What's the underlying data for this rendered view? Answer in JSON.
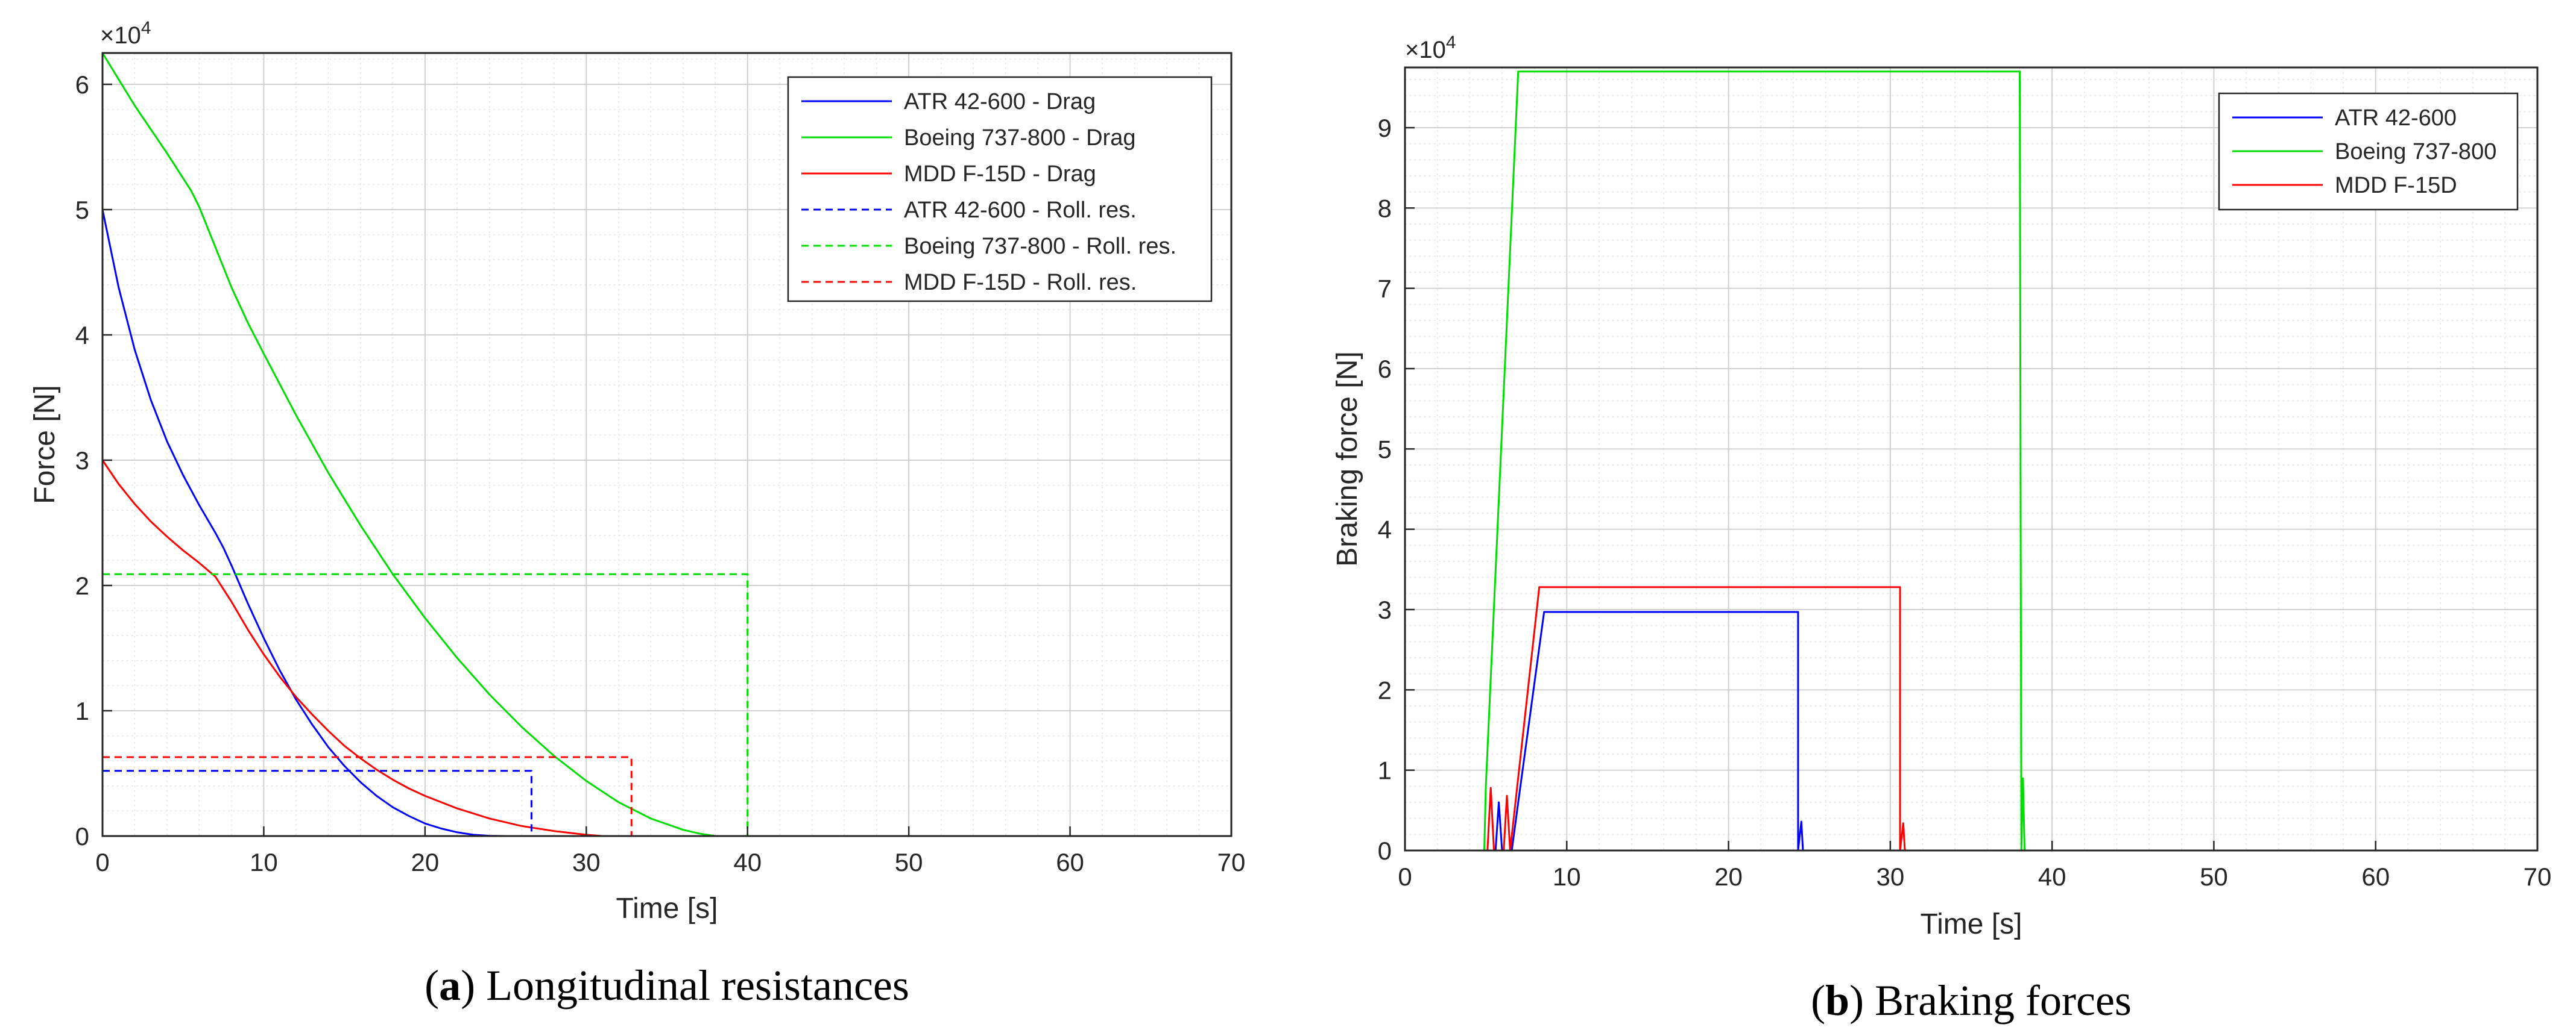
{
  "chart_data": [
    {
      "type": "line",
      "caption_letter": "a",
      "caption_text": "Longitudinal resistances",
      "title": "",
      "xlabel": "Time [s]",
      "ylabel": "Force [N]",
      "y_multiplier": "×10",
      "y_exponent": "4",
      "xlim": [
        0,
        70
      ],
      "ylim": [
        0,
        62500
      ],
      "xticks": [
        0,
        10,
        20,
        30,
        40,
        50,
        60,
        70
      ],
      "yticks": [
        0,
        10000,
        20000,
        30000,
        40000,
        50000,
        60000
      ],
      "ytick_labels": [
        "0",
        "1",
        "2",
        "3",
        "4",
        "5",
        "6"
      ],
      "grid": "major and minor",
      "legend_position": "top-right",
      "series": [
        {
          "name": "ATR 42-600 - Drag",
          "color": "#0000ff",
          "style": "solid",
          "x": [
            0,
            1,
            2,
            3,
            4,
            5,
            6,
            7,
            7.5,
            8,
            9,
            10,
            11,
            12,
            13,
            14,
            15,
            16,
            17,
            18,
            19,
            20,
            21,
            22,
            23,
            24,
            25,
            26,
            70
          ],
          "y": [
            50000,
            43800,
            38800,
            34800,
            31500,
            28800,
            26400,
            24200,
            23000,
            21600,
            18600,
            15800,
            13200,
            10900,
            8900,
            7100,
            5600,
            4300,
            3200,
            2300,
            1600,
            1000,
            600,
            300,
            100,
            20,
            0,
            0,
            0
          ]
        },
        {
          "name": "Boeing 737-800 - Drag",
          "color": "#00dd00",
          "style": "solid",
          "x": [
            0,
            2,
            4,
            5.5,
            6,
            7,
            8,
            9,
            10,
            12,
            14,
            16,
            18,
            20,
            22,
            24,
            26,
            28,
            30,
            32,
            34,
            36,
            37,
            38,
            70
          ],
          "y": [
            62500,
            58300,
            54500,
            51500,
            50200,
            47000,
            43800,
            41000,
            38500,
            33600,
            29000,
            24800,
            20900,
            17400,
            14200,
            11300,
            8700,
            6400,
            4400,
            2700,
            1400,
            500,
            200,
            0,
            0
          ]
        },
        {
          "name": "MDD F-15D - Drag",
          "color": "#ff0000",
          "style": "solid",
          "x": [
            0,
            1,
            2,
            3,
            4,
            5,
            6,
            7,
            8,
            9,
            10,
            11,
            12,
            13,
            14,
            15,
            16,
            17,
            18,
            19,
            20,
            22,
            24,
            26,
            28,
            30,
            31,
            70
          ],
          "y": [
            30000,
            28100,
            26500,
            25100,
            23900,
            22800,
            21800,
            20700,
            18700,
            16500,
            14500,
            12700,
            11100,
            9700,
            8400,
            7200,
            6200,
            5300,
            4500,
            3800,
            3200,
            2200,
            1400,
            800,
            400,
            100,
            0,
            0
          ]
        },
        {
          "name": "ATR 42-600 - Roll. res.",
          "color": "#0000ff",
          "style": "dashed",
          "x": [
            0,
            26.6,
            26.6,
            70
          ],
          "y": [
            5200,
            5200,
            0,
            0
          ]
        },
        {
          "name": "Boeing 737-800 - Roll. res.",
          "color": "#00dd00",
          "style": "dashed",
          "x": [
            0,
            40,
            40,
            70
          ],
          "y": [
            20900,
            20900,
            0,
            0
          ]
        },
        {
          "name": "MDD F-15D - Roll. res.",
          "color": "#ff0000",
          "style": "dashed",
          "x": [
            0,
            32.8,
            32.8,
            70
          ],
          "y": [
            6300,
            6300,
            0,
            0
          ]
        }
      ]
    },
    {
      "type": "line",
      "caption_letter": "b",
      "caption_text": "Braking forces",
      "title": "",
      "xlabel": "Time [s]",
      "ylabel": "Braking force [N]",
      "y_multiplier": "×10",
      "y_exponent": "4",
      "xlim": [
        0,
        70
      ],
      "ylim": [
        0,
        97500
      ],
      "xticks": [
        0,
        10,
        20,
        30,
        40,
        50,
        60,
        70
      ],
      "yticks": [
        0,
        10000,
        20000,
        30000,
        40000,
        50000,
        60000,
        70000,
        80000,
        90000
      ],
      "ytick_labels": [
        "0",
        "1",
        "2",
        "3",
        "4",
        "5",
        "6",
        "7",
        "8",
        "9"
      ],
      "grid": "major and minor",
      "legend_position": "top-right",
      "series": [
        {
          "name": "ATR 42-600",
          "color": "#0000ff",
          "style": "solid",
          "x": [
            0,
            5.6,
            5.8,
            6.0,
            6.6,
            7.0,
            8.6,
            24.3,
            24.3,
            24.5,
            24.6,
            24.8,
            70
          ],
          "y": [
            0,
            0,
            6000,
            0,
            0,
            6000,
            29700,
            29700,
            0,
            3600,
            0,
            0,
            0
          ]
        },
        {
          "name": "Boeing 737-800",
          "color": "#00dd00",
          "style": "solid",
          "x": [
            0,
            4.9,
            5.0,
            7.0,
            7.1,
            38.0,
            38.1,
            38.2,
            38.3,
            70
          ],
          "y": [
            0,
            0,
            8000,
            97000,
            97000,
            97000,
            0,
            9000,
            0,
            0
          ]
        },
        {
          "name": "MDD F-15D",
          "color": "#ff0000",
          "style": "solid",
          "x": [
            0,
            5.1,
            5.3,
            5.5,
            6.1,
            6.3,
            6.5,
            8.3,
            30.6,
            30.6,
            30.8,
            30.9,
            70
          ],
          "y": [
            0,
            0,
            7800,
            0,
            0,
            6800,
            0,
            32800,
            32800,
            0,
            3400,
            0,
            0
          ]
        }
      ]
    }
  ]
}
